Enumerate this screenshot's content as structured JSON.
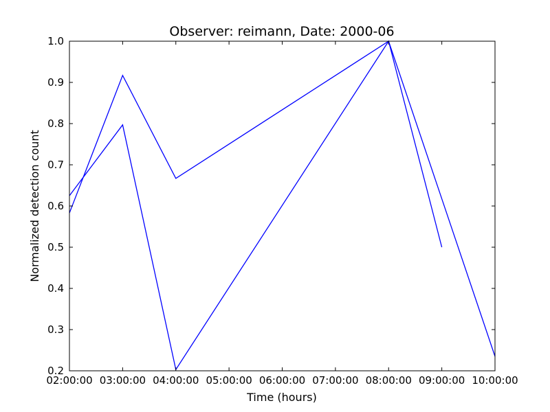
{
  "chart_data": {
    "type": "line",
    "title": "Observer: reimann, Date: 2000-06",
    "xlabel": "Time (hours)",
    "ylabel": "Normalized detection count",
    "x_ticks": [
      "02:00:00",
      "03:00:00",
      "04:00:00",
      "05:00:00",
      "06:00:00",
      "07:00:00",
      "08:00:00",
      "09:00:00",
      "10:00:00"
    ],
    "y_ticks": [
      "0.2",
      "0.3",
      "0.4",
      "0.5",
      "0.6",
      "0.7",
      "0.8",
      "0.9",
      "1.0"
    ],
    "xlim": [
      "02:00:00",
      "10:00:00"
    ],
    "ylim": [
      0.2,
      1.0
    ],
    "grid": false,
    "color": "#0000ff",
    "series": [
      {
        "x": [
          "02:00:00",
          "03:00:00",
          "04:00:00",
          "08:00:00",
          "10:00:00"
        ],
        "y": [
          0.583,
          0.917,
          0.667,
          1.0,
          0.235
        ]
      },
      {
        "x": [
          "02:00:00",
          "03:00:00",
          "04:00:00",
          "08:00:00",
          "09:00:00"
        ],
        "y": [
          0.625,
          0.797,
          0.203,
          1.0,
          0.5
        ]
      }
    ]
  }
}
